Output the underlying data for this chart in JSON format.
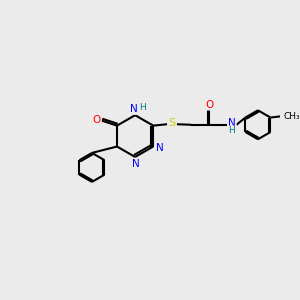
{
  "bg_color": "#ebebeb",
  "bond_color": "#000000",
  "atom_colors": {
    "N": "#0000ff",
    "O": "#ff0000",
    "S": "#cccc00",
    "H": "#008080",
    "C": "#000000"
  },
  "figsize": [
    3.0,
    3.0
  ],
  "dpi": 100
}
